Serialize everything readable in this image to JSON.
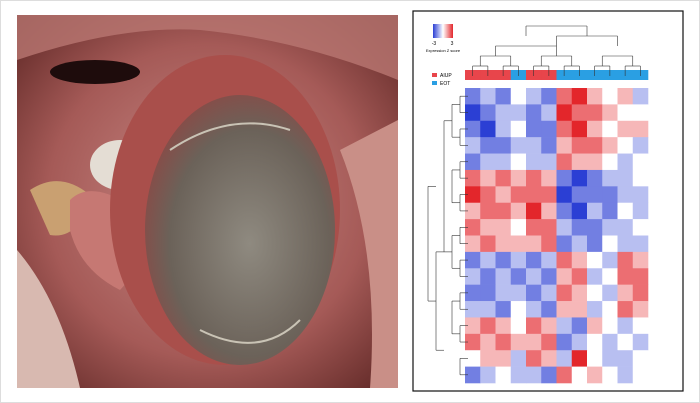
{
  "heatmap": {
    "color_key": {
      "title": "Expression Z score",
      "ticks": [
        -3,
        3
      ],
      "low_color": "#2b3fd4",
      "mid_color": "#ffffff",
      "high_color": "#e3262b"
    },
    "groups": [
      {
        "name": "AIUP",
        "color": "#e8454b"
      },
      {
        "name": "EOT",
        "color": "#2a9fe3"
      }
    ],
    "column_groups": [
      0,
      0,
      0,
      1,
      0,
      0,
      1,
      1,
      1,
      1,
      1,
      1
    ],
    "z": [
      [
        -2,
        -1,
        -2,
        0,
        -1,
        -2,
        2,
        3,
        1,
        0,
        1,
        -1
      ],
      [
        -3,
        -2,
        -1,
        -1,
        -2,
        -1,
        3,
        2,
        2,
        1,
        0,
        0
      ],
      [
        -2,
        -3,
        -1,
        0,
        -2,
        -2,
        2,
        3,
        1,
        0,
        1,
        1
      ],
      [
        -1,
        -2,
        -2,
        -1,
        -1,
        -2,
        1,
        2,
        2,
        1,
        0,
        -1
      ],
      [
        -2,
        -1,
        -1,
        0,
        -1,
        -1,
        2,
        1,
        1,
        0,
        -1,
        0
      ],
      [
        2,
        1,
        2,
        1,
        2,
        1,
        -2,
        -3,
        -2,
        -1,
        -1,
        0
      ],
      [
        3,
        2,
        1,
        2,
        2,
        2,
        -3,
        -2,
        -2,
        -2,
        -1,
        -1
      ],
      [
        1,
        2,
        2,
        1,
        3,
        1,
        -2,
        -3,
        -1,
        -2,
        0,
        -1
      ],
      [
        2,
        1,
        1,
        0,
        2,
        2,
        -1,
        -2,
        -2,
        -1,
        -1,
        0
      ],
      [
        1,
        2,
        1,
        1,
        1,
        2,
        -2,
        -1,
        -2,
        0,
        -1,
        -1
      ],
      [
        -2,
        -1,
        -2,
        -1,
        -2,
        -1,
        2,
        1,
        0,
        -1,
        2,
        1
      ],
      [
        -1,
        -2,
        -1,
        -2,
        -1,
        -2,
        1,
        2,
        -1,
        0,
        2,
        2
      ],
      [
        -2,
        -2,
        -1,
        -1,
        -2,
        -1,
        2,
        1,
        0,
        -1,
        1,
        2
      ],
      [
        -1,
        -1,
        -2,
        0,
        -1,
        -2,
        1,
        1,
        -1,
        0,
        2,
        1
      ],
      [
        1,
        2,
        1,
        0,
        2,
        1,
        -1,
        -2,
        1,
        0,
        -1,
        0
      ],
      [
        2,
        1,
        2,
        1,
        1,
        2,
        -2,
        -1,
        0,
        -1,
        0,
        -1
      ],
      [
        0,
        1,
        1,
        -1,
        2,
        1,
        -1,
        3,
        0,
        -1,
        -1,
        0
      ],
      [
        -2,
        -1,
        0,
        -1,
        -1,
        -2,
        2,
        0,
        1,
        0,
        -1,
        0
      ]
    ]
  }
}
